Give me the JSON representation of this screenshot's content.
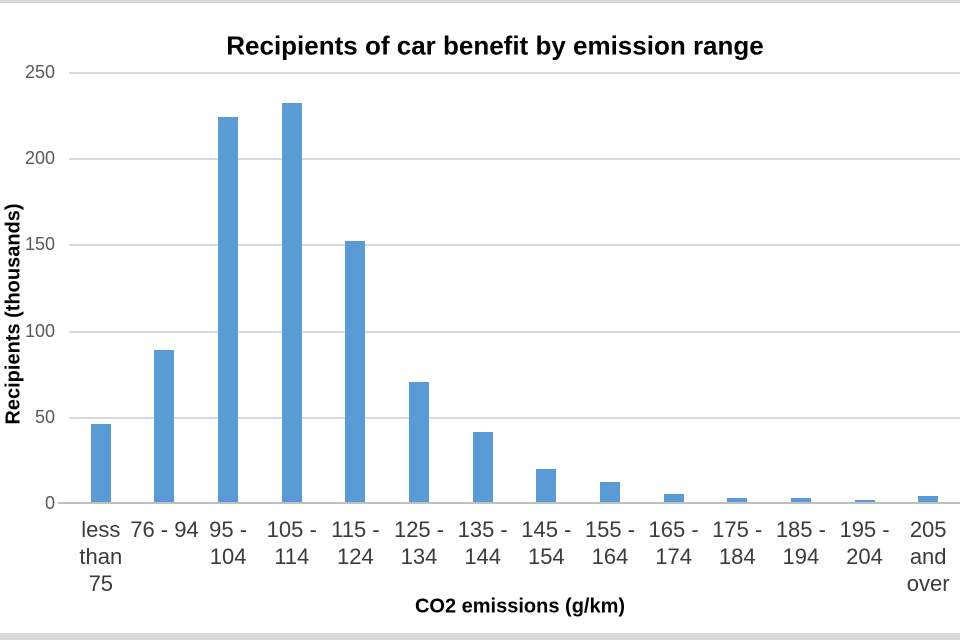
{
  "frame": {
    "edge_color": "#D9D9D9"
  },
  "chart_data": {
    "type": "bar",
    "title": "Recipients of car benefit by emission range",
    "xlabel": "CO2 emissions (g/km)",
    "ylabel": "Recipients (thousands)",
    "categories": [
      "less than 75",
      "76 - 94",
      "95 - 104",
      "105 - 114",
      "115 - 124",
      "125 - 134",
      "135 - 144",
      "145 - 154",
      "155 - 164",
      "165 - 174",
      "175 - 184",
      "185 - 194",
      "195 - 204",
      "205 and over"
    ],
    "values": [
      46,
      89,
      224,
      232,
      152,
      70,
      41,
      20,
      12,
      5,
      3,
      3,
      2,
      4
    ],
    "ylim": [
      0,
      250
    ],
    "ytick_step": 50,
    "ytick_labels": [
      "250",
      "200",
      "150",
      "100",
      "50",
      "0"
    ],
    "grid": "horizontal gridlines on",
    "legend": "none",
    "bar_color": "#5B9BD5",
    "gridline_color": "#D9D9D9",
    "axis_line_color": "#BFBFBF",
    "title_color": "#000000",
    "ytick_label_color": "#595959",
    "xtick_label_color": "#3B3B3B"
  }
}
